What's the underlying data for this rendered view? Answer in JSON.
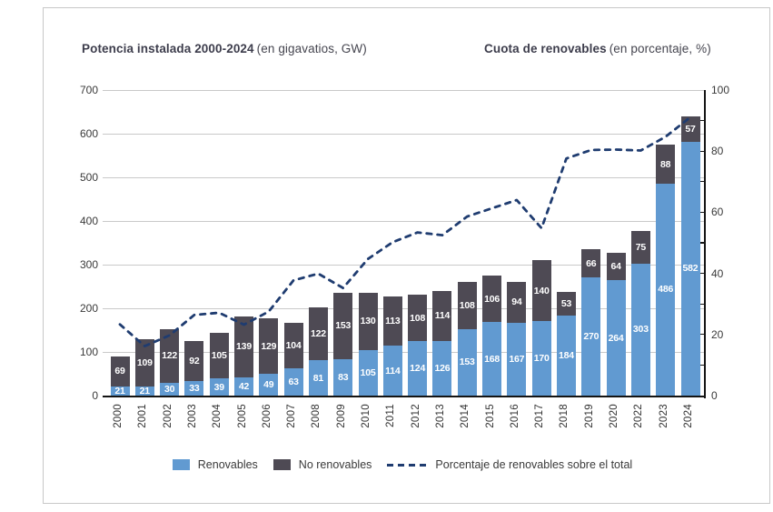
{
  "header": {
    "left_title_bold": "Potencia instalada 2000-2024",
    "left_title_normal": "(en gigavatios, GW)",
    "right_title_bold": "Cuota de renovables",
    "right_title_normal": "(en porcentaje, %)"
  },
  "legend": {
    "renovables_label": "Renovables",
    "no_renovables_label": "No renovables",
    "line_label": "Porcentaje de renovables sobre el total"
  },
  "colors": {
    "renewables_bar": "#619AD1",
    "non_renewables_bar": "#4E4A54",
    "share_line": "#1F3C70",
    "gridline": "#C9C9C9",
    "axis": "#141414",
    "axis_text": "#3A3A3A",
    "title_text": "#3D3D4C",
    "bar_label_text": "#FFFFFF"
  },
  "chart_data": {
    "type": "bar",
    "subtype": "stacked-bars-with-percentage-line",
    "title_left": "Potencia instalada 2000-2024 (en gigavatios, GW)",
    "title_right": "Cuota de renovables (en porcentaje, %)",
    "grid": "horizontal",
    "legend_position": "bottom",
    "categories": [
      "2000",
      "2001",
      "2002",
      "2003",
      "2004",
      "2005",
      "2006",
      "2007",
      "2008",
      "2009",
      "2010",
      "2011",
      "2012",
      "2013",
      "2014",
      "2015",
      "2016",
      "2017",
      "2018",
      "2019",
      "2020",
      "2022",
      "2023",
      "2024"
    ],
    "series": [
      {
        "name": "Renovables",
        "color": "#619AD1",
        "values": [
          21,
          21,
          30,
          33,
          39,
          42,
          49,
          63,
          81,
          83,
          105,
          114,
          124,
          126,
          153,
          168,
          167,
          170,
          184,
          270,
          264,
          303,
          486,
          582
        ]
      },
      {
        "name": "No renovables",
        "color": "#4E4A54",
        "values": [
          69,
          109,
          122,
          92,
          105,
          139,
          129,
          104,
          122,
          153,
          130,
          113,
          108,
          114,
          108,
          106,
          94,
          140,
          53,
          66,
          64,
          75,
          88,
          57
        ]
      }
    ],
    "line": {
      "name": "Porcentaje de renovables sobre el total",
      "color": "#1F3C70",
      "style": "dashed",
      "axis": "right",
      "values": [
        23.3,
        16.2,
        19.7,
        26.4,
        27.1,
        23.2,
        27.5,
        37.7,
        39.9,
        35.2,
        44.7,
        50.2,
        53.4,
        52.5,
        58.6,
        61.3,
        64.0,
        54.8,
        77.6,
        80.4,
        80.5,
        80.2,
        84.7,
        91.1
      ]
    },
    "y_left": {
      "min": 0,
      "max": 700,
      "step": 100
    },
    "y_right": {
      "min": 0,
      "max": 100,
      "step": 20,
      "minor_step": 10
    }
  }
}
